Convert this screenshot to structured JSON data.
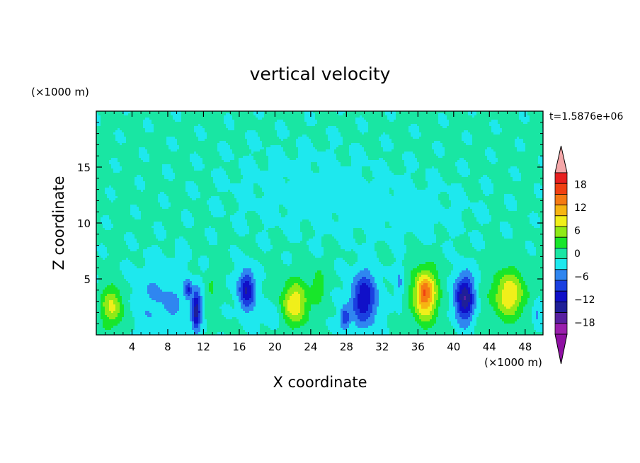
{
  "chart_data": {
    "type": "heatmap",
    "title": "vertical velocity",
    "xlabel": "X coordinate",
    "ylabel": "Z coordinate",
    "x_unit_label": "(×1000 m)",
    "y_unit_label": "(×1000 m)",
    "time_label": "t=1.5876e+06",
    "xlim": [
      0,
      50
    ],
    "ylim": [
      0,
      20
    ],
    "x_ticks": [
      4,
      8,
      12,
      16,
      20,
      24,
      28,
      32,
      36,
      40,
      44,
      48
    ],
    "x_tick_labels": [
      "4",
      "8",
      "12",
      "16",
      "20",
      "24",
      "28",
      "32",
      "36",
      "40",
      "44",
      "48"
    ],
    "y_ticks": [
      5,
      10,
      15
    ],
    "y_tick_labels": [
      "5",
      "10",
      "15"
    ],
    "background_value": 0.5,
    "blobs": [
      {
        "x": 1.8,
        "z": 2.5,
        "sx": 1.3,
        "sz": 1.8,
        "a": 9
      },
      {
        "x": 7.5,
        "z": 3.0,
        "sx": 3.5,
        "sz": 3.5,
        "a": -4
      },
      {
        "x": 11.2,
        "z": 2.2,
        "sx": 0.5,
        "sz": 1.7,
        "a": -13
      },
      {
        "x": 10.3,
        "z": 4.0,
        "sx": 0.4,
        "sz": 0.8,
        "a": -8
      },
      {
        "x": 12.8,
        "z": 4.0,
        "sx": 0.6,
        "sz": 1.8,
        "a": 3
      },
      {
        "x": 16.8,
        "z": 4.0,
        "sx": 0.9,
        "sz": 1.8,
        "a": -13
      },
      {
        "x": 22.2,
        "z": 2.8,
        "sx": 1.6,
        "sz": 1.9,
        "a": 11
      },
      {
        "x": 24.8,
        "z": 4.5,
        "sx": 0.7,
        "sz": 1.4,
        "a": 5
      },
      {
        "x": 30.0,
        "z": 3.2,
        "sx": 1.5,
        "sz": 2.4,
        "a": -12
      },
      {
        "x": 27.8,
        "z": 1.5,
        "sx": 0.6,
        "sz": 1.0,
        "a": -9
      },
      {
        "x": 36.8,
        "z": 3.6,
        "sx": 1.4,
        "sz": 2.3,
        "a": 15
      },
      {
        "x": 36.7,
        "z": 3.8,
        "sx": 0.6,
        "sz": 1.0,
        "a": 3
      },
      {
        "x": 41.2,
        "z": 3.3,
        "sx": 1.1,
        "sz": 2.1,
        "a": -15
      },
      {
        "x": 46.2,
        "z": 3.6,
        "sx": 1.8,
        "sz": 2.1,
        "a": 11
      },
      {
        "x": 34.0,
        "z": 4.5,
        "sx": 0.5,
        "sz": 2.0,
        "a": -4
      },
      {
        "x": 19.5,
        "z": 2.0,
        "sx": 1.5,
        "sz": 1.5,
        "a": -3
      },
      {
        "x": 49.3,
        "z": 2.0,
        "sx": 0.6,
        "sz": 1.5,
        "a": -4
      },
      {
        "x": 23.0,
        "z": 13.0,
        "sx": 9.0,
        "sz": 4.0,
        "a": -1.4
      },
      {
        "x": 35.0,
        "z": 11.0,
        "sx": 8.0,
        "sz": 3.0,
        "a": -1.3
      }
    ],
    "levels": [
      -21,
      -18,
      -15,
      -12,
      -9,
      -6,
      -3,
      0,
      3,
      6,
      9,
      12,
      15,
      18,
      21
    ],
    "colorbar_tick_values": [
      -18,
      -12,
      -6,
      0,
      6,
      12,
      18
    ],
    "colorbar_labels": [
      "−18",
      "−12",
      "−6",
      "0",
      "6",
      "12",
      "18"
    ],
    "colors": [
      "#9a1fad",
      "#5820a0",
      "#1f1f98",
      "#1010c8",
      "#1a40e0",
      "#2f86f0",
      "#1ee8ee",
      "#19e6a3",
      "#18e62a",
      "#8fea17",
      "#f0ef1a",
      "#f6b512",
      "#f57a13",
      "#f04012",
      "#e81f1f"
    ],
    "under_color": "#8e10a2",
    "over_color": "#f4a6a8"
  }
}
